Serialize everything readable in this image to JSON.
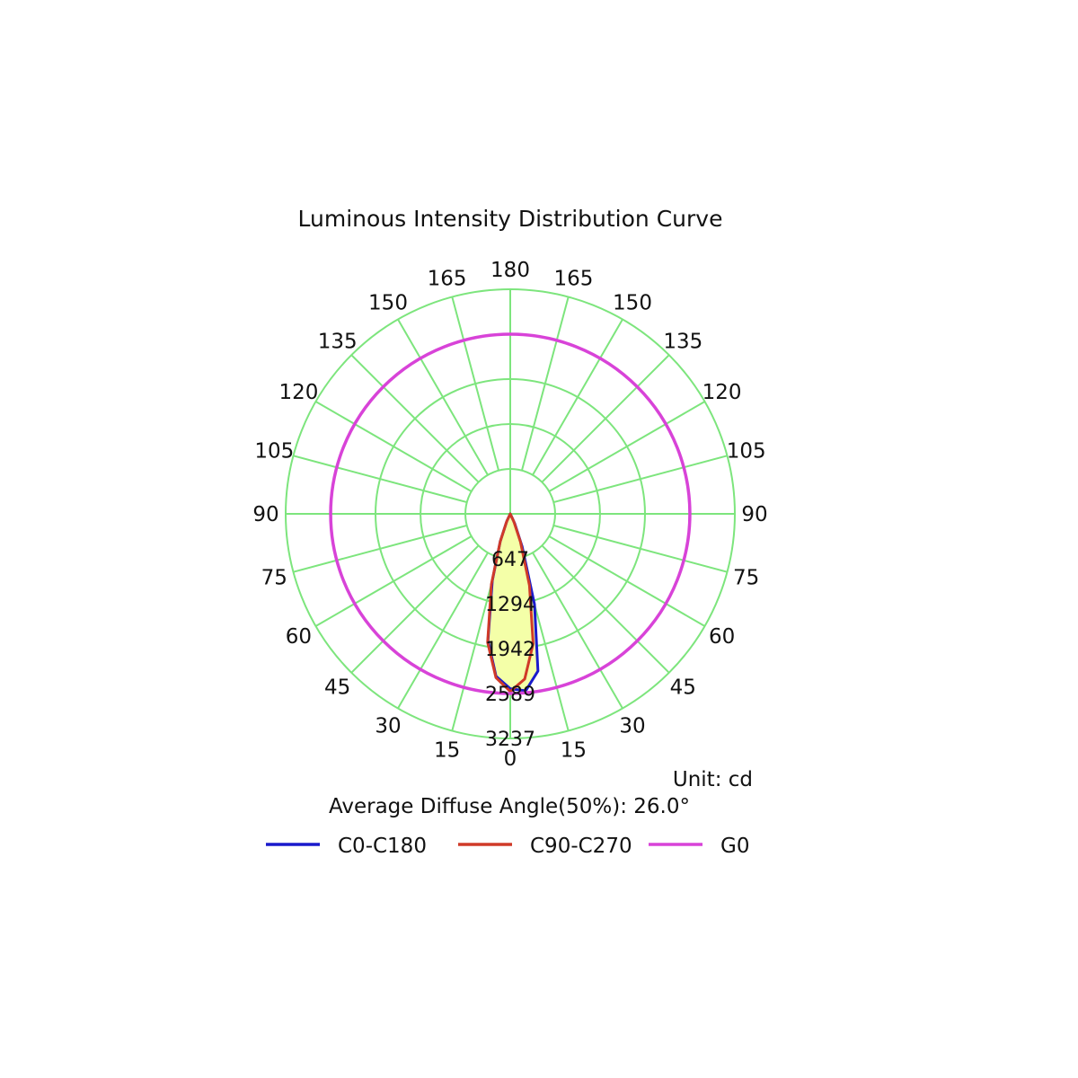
{
  "chart_data": {
    "type": "polar",
    "title": "Luminous Intensity Distribution Curve",
    "unit_label": "Unit: cd",
    "note": "Average Diffuse Angle(50%): 26.0°",
    "angle_labels_left": [
      "0",
      "15",
      "30",
      "45",
      "60",
      "75",
      "90",
      "105",
      "120",
      "135",
      "150",
      "165",
      "180"
    ],
    "angle_labels_right": [
      "15",
      "30",
      "45",
      "60",
      "75",
      "90",
      "105",
      "120",
      "135",
      "150",
      "165"
    ],
    "radial_tick_labels": [
      "647",
      "1294",
      "1942",
      "2589",
      "3237"
    ],
    "radial_tick_values": [
      647,
      1294,
      1942,
      2589,
      3237
    ],
    "rmax": 3237,
    "grid": true,
    "grid_color": "#7de57d",
    "legend_position": "bottom",
    "series": [
      {
        "name": "C0-C180",
        "color": "#1a1acc",
        "points": [
          {
            "angle": -30,
            "r": 0
          },
          {
            "angle": -25,
            "r": 120
          },
          {
            "angle": -20,
            "r": 420
          },
          {
            "angle": -15,
            "r": 1000
          },
          {
            "angle": -10,
            "r": 1850
          },
          {
            "angle": -5,
            "r": 2350
          },
          {
            "angle": 0,
            "r": 2520
          },
          {
            "angle": 5,
            "r": 2560
          },
          {
            "angle": 10,
            "r": 2300
          },
          {
            "angle": 15,
            "r": 1350
          },
          {
            "angle": 20,
            "r": 500
          },
          {
            "angle": 25,
            "r": 150
          },
          {
            "angle": 30,
            "r": 0
          }
        ]
      },
      {
        "name": "C90-C270",
        "color": "#d03a28",
        "points": [
          {
            "angle": -30,
            "r": 0
          },
          {
            "angle": -25,
            "r": 120
          },
          {
            "angle": -20,
            "r": 420
          },
          {
            "angle": -15,
            "r": 1050
          },
          {
            "angle": -10,
            "r": 1880
          },
          {
            "angle": -5,
            "r": 2370
          },
          {
            "angle": 0,
            "r": 2560
          },
          {
            "angle": 5,
            "r": 2390
          },
          {
            "angle": 10,
            "r": 1900
          },
          {
            "angle": 15,
            "r": 1070
          },
          {
            "angle": 20,
            "r": 430
          },
          {
            "angle": 25,
            "r": 120
          },
          {
            "angle": 30,
            "r": 0
          }
        ]
      },
      {
        "name": "G0",
        "color": "#d843d8",
        "constant_r": 2589
      }
    ],
    "fill_color": "#f4ffa8"
  }
}
